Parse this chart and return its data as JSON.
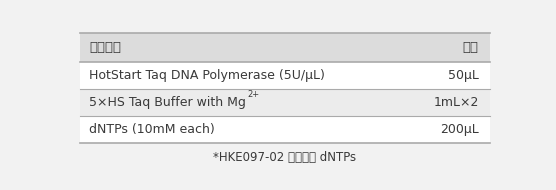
{
  "header": [
    "产品组成",
    "体积"
  ],
  "rows": [
    [
      "HotStart Taq DNA Polymerase (5U/μL)",
      "50μL"
    ],
    [
      "5×HS Taq Buffer with Mg",
      "1mL×2"
    ],
    [
      "dNTPs (10mM each)",
      "200μL"
    ]
  ],
  "row2_sup": "2+",
  "footnote": "*HKE097-02 系列不含 dNTPs",
  "bg_color": "#f2f2f2",
  "header_bg": "#dcdcdc",
  "row_bg_even": "#ffffff",
  "row_bg_odd": "#ececec",
  "border_color": "#aaaaaa",
  "text_color": "#3a3a3a",
  "header_fontsize": 9.5,
  "row_fontsize": 9.0,
  "footnote_fontsize": 8.5
}
